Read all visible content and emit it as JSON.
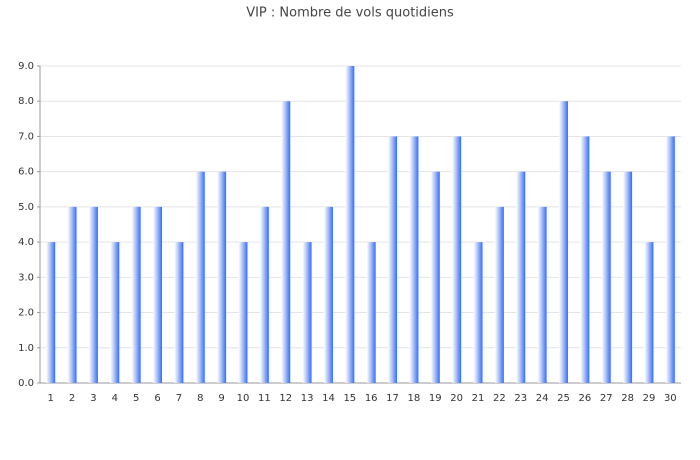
{
  "chart_data": {
    "type": "bar",
    "title": "VIP : Nombre de vols quotidiens",
    "categories": [
      "1",
      "2",
      "3",
      "4",
      "5",
      "6",
      "7",
      "8",
      "9",
      "10",
      "11",
      "12",
      "13",
      "14",
      "15",
      "16",
      "17",
      "18",
      "19",
      "20",
      "21",
      "22",
      "23",
      "24",
      "25",
      "26",
      "27",
      "28",
      "29",
      "30"
    ],
    "values": [
      4,
      5,
      5,
      4,
      5,
      5,
      4,
      6,
      6,
      4,
      5,
      8,
      4,
      5,
      9,
      4,
      7,
      7,
      6,
      7,
      4,
      5,
      6,
      5,
      8,
      7,
      6,
      6,
      4,
      7
    ],
    "color": "#3a6cf0",
    "ylim": [
      0,
      9
    ],
    "yticks": [
      {
        "value": 0,
        "label": "0.0"
      },
      {
        "value": 1,
        "label": "1.0"
      },
      {
        "value": 2,
        "label": "2.0"
      },
      {
        "value": 3,
        "label": "3.0"
      },
      {
        "value": 4,
        "label": "4.0"
      },
      {
        "value": 5,
        "label": "5.0"
      },
      {
        "value": 6,
        "label": "6.0"
      },
      {
        "value": 7,
        "label": "7.0"
      },
      {
        "value": 8,
        "label": "8.0"
      },
      {
        "value": 9,
        "label": "9.0"
      }
    ],
    "grid": true
  }
}
